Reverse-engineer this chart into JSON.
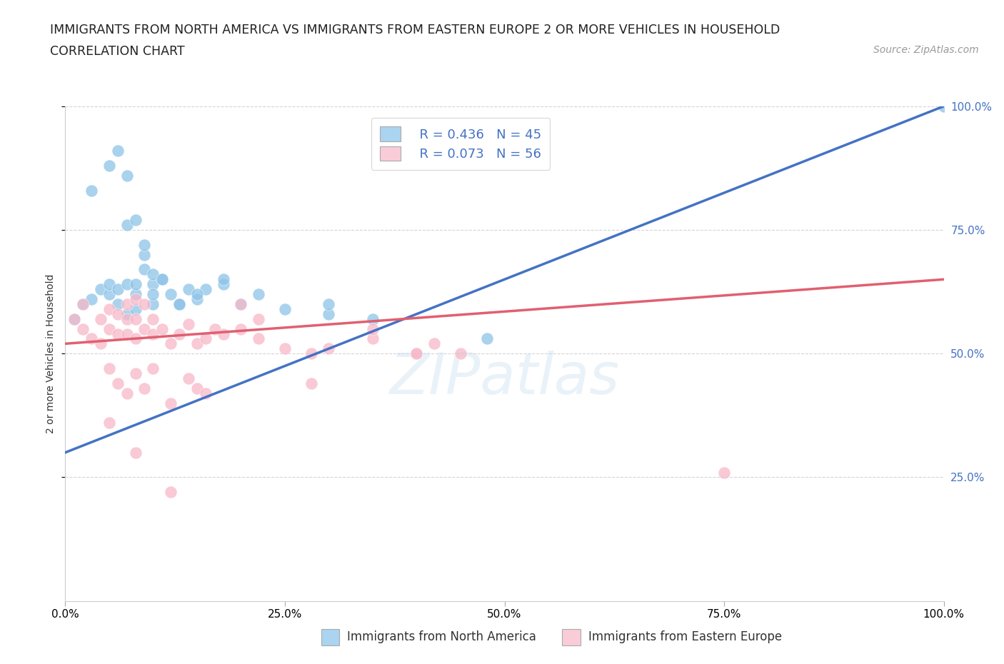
{
  "title_line1": "IMMIGRANTS FROM NORTH AMERICA VS IMMIGRANTS FROM EASTERN EUROPE 2 OR MORE VEHICLES IN HOUSEHOLD",
  "title_line2": "CORRELATION CHART",
  "source_text": "Source: ZipAtlas.com",
  "ylabel": "2 or more Vehicles in Household",
  "xlim": [
    0,
    100
  ],
  "ylim": [
    0,
    100
  ],
  "xtick_labels": [
    "0.0%",
    "25.0%",
    "50.0%",
    "75.0%",
    "100.0%"
  ],
  "xtick_positions": [
    0,
    25,
    50,
    75,
    100
  ],
  "right_ytick_labels": [
    "25.0%",
    "50.0%",
    "75.0%",
    "100.0%"
  ],
  "right_ytick_positions": [
    25,
    50,
    75,
    100
  ],
  "watermark": "ZIPatlas",
  "legend_R_blue": "R = 0.436",
  "legend_N_blue": "N = 45",
  "legend_R_pink": "R = 0.073",
  "legend_N_pink": "N = 56",
  "legend_label_blue": "Immigrants from North America",
  "legend_label_pink": "Immigrants from Eastern Europe",
  "blue_scatter_color": "#8dc3e8",
  "pink_scatter_color": "#f7b8c8",
  "blue_line_color": "#4472c4",
  "pink_line_color": "#e06070",
  "blue_legend_color": "#aad4f0",
  "pink_legend_color": "#f9ccd8",
  "scatter_blue_x": [
    1,
    2,
    3,
    4,
    5,
    5,
    6,
    6,
    7,
    7,
    8,
    8,
    8,
    9,
    9,
    10,
    10,
    11,
    12,
    13,
    14,
    15,
    16,
    18,
    20,
    22,
    25,
    30,
    35,
    3,
    5,
    6,
    7,
    7,
    8,
    9,
    10,
    10,
    11,
    13,
    15,
    18,
    30,
    48,
    100
  ],
  "scatter_blue_y": [
    57,
    60,
    61,
    63,
    62,
    64,
    60,
    63,
    58,
    64,
    59,
    62,
    64,
    70,
    67,
    64,
    60,
    65,
    62,
    60,
    63,
    61,
    63,
    64,
    60,
    62,
    59,
    58,
    57,
    83,
    88,
    91,
    86,
    76,
    77,
    72,
    66,
    62,
    65,
    60,
    62,
    65,
    60,
    53,
    100
  ],
  "scatter_pink_x": [
    1,
    2,
    2,
    3,
    4,
    4,
    5,
    5,
    6,
    6,
    7,
    7,
    7,
    8,
    8,
    8,
    9,
    9,
    10,
    10,
    11,
    12,
    13,
    14,
    15,
    16,
    17,
    18,
    20,
    22,
    25,
    28,
    30,
    35,
    40,
    42,
    45,
    5,
    6,
    7,
    8,
    9,
    10,
    12,
    14,
    15,
    16,
    75,
    20,
    28,
    35,
    40,
    22,
    12,
    8,
    5
  ],
  "scatter_pink_y": [
    57,
    55,
    60,
    53,
    52,
    57,
    55,
    59,
    54,
    58,
    54,
    57,
    60,
    53,
    57,
    61,
    55,
    60,
    54,
    57,
    55,
    52,
    54,
    56,
    52,
    53,
    55,
    54,
    55,
    53,
    51,
    50,
    51,
    53,
    50,
    52,
    50,
    47,
    44,
    42,
    46,
    43,
    47,
    40,
    45,
    43,
    42,
    26,
    60,
    44,
    55,
    50,
    57,
    22,
    30,
    36
  ],
  "blue_trend_x": [
    0,
    100
  ],
  "blue_trend_y": [
    30,
    100
  ],
  "pink_trend_x": [
    0,
    100
  ],
  "pink_trend_y": [
    52,
    65
  ],
  "grid_color": "#d0d0d0",
  "background_color": "#ffffff",
  "title_fontsize": 12.5,
  "subtitle_fontsize": 12.5,
  "axis_label_fontsize": 10,
  "tick_fontsize": 11,
  "legend_fontsize": 13
}
